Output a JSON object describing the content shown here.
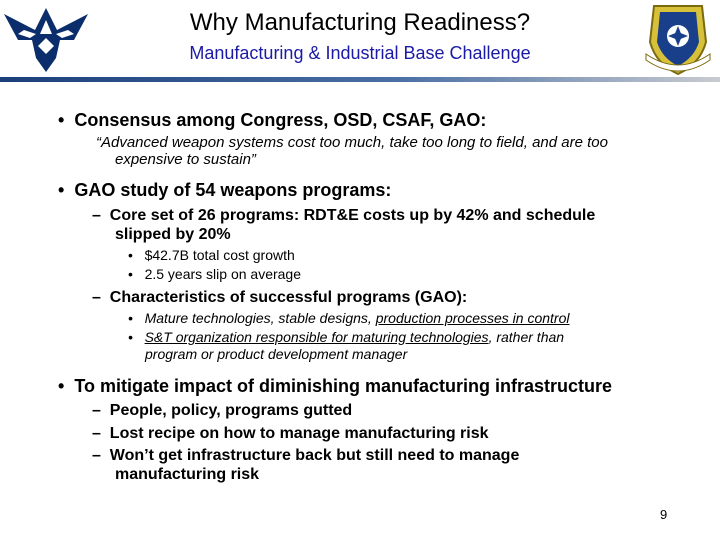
{
  "header": {
    "title": "Why Manufacturing Readiness?",
    "subtitle": "Manufacturing & Industrial Base Challenge",
    "left_logo_icon": "air-force-wings-icon",
    "right_seal_icon": "afrl-shield-seal-icon",
    "colors": {
      "subtitle": "#1a1aa6",
      "rule": "#1a3f7a"
    }
  },
  "content": {
    "bullet_glyph": "•",
    "dash_glyph": "–",
    "items": {
      "consensus": {
        "text": "Consensus among Congress, OSD, CSAF, GAO:",
        "quote_line1": "“Advanced weapon systems cost too much, take too long to field, and are too",
        "quote_line2": "expensive to sustain”"
      },
      "gao_study": {
        "text": "GAO study of 54 weapons programs:",
        "core_line1": "Core set of 26 programs:  RDT&E costs up by 42% and schedule",
        "core_line2": "slipped by 20%",
        "sub1": "$42.7B total cost growth",
        "sub2": "2.5 years slip on average",
        "characteristics": "Characteristics of successful programs (GAO):",
        "char1_prefix": "Mature technologies, stable designs, ",
        "char1_link": "production processes in control",
        "char2_link": "S&T organization responsible for maturing technologies",
        "char2_suffix": ", rather than",
        "char2_line2": "program or product development manager"
      },
      "mitigate": {
        "text": "To mitigate impact of diminishing manufacturing infrastructure",
        "sub1": "People, policy, programs gutted",
        "sub2": "Lost recipe on how to manage manufacturing risk",
        "sub3_line1": "Won’t get infrastructure back but still need to manage",
        "sub3_line2": "manufacturing risk"
      }
    }
  },
  "footer": {
    "page_number": "9"
  }
}
